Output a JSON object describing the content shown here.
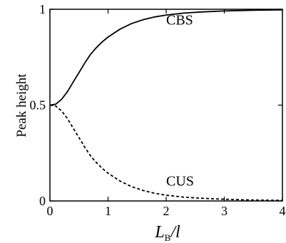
{
  "chart_data": {
    "type": "line",
    "title": "",
    "ylabel": "Peak height",
    "xlabel": {
      "main": "L",
      "sub": "B",
      "tail": "/l"
    },
    "xlim": [
      0,
      4
    ],
    "ylim": [
      0,
      1
    ],
    "x_ticks": [
      "0",
      "1",
      "2",
      "3",
      "4"
    ],
    "y_ticks": [
      {
        "value": 0,
        "label": "0"
      },
      {
        "value": 0.5,
        "label": "0.5"
      },
      {
        "value": 1,
        "label": "1"
      }
    ],
    "grid": false,
    "legend": "none",
    "series": [
      {
        "name": "CBS",
        "style": "solid",
        "color": "#000000",
        "label_at": [
          2.0,
          0.92
        ],
        "points": [
          [
            0.0,
            0.5
          ],
          [
            0.1,
            0.505
          ],
          [
            0.2,
            0.53
          ],
          [
            0.3,
            0.57
          ],
          [
            0.4,
            0.62
          ],
          [
            0.5,
            0.67
          ],
          [
            0.6,
            0.72
          ],
          [
            0.7,
            0.765
          ],
          [
            0.8,
            0.8
          ],
          [
            0.9,
            0.83
          ],
          [
            1.0,
            0.855
          ],
          [
            1.2,
            0.895
          ],
          [
            1.4,
            0.925
          ],
          [
            1.6,
            0.945
          ],
          [
            1.8,
            0.96
          ],
          [
            2.0,
            0.97
          ],
          [
            2.3,
            0.98
          ],
          [
            2.6,
            0.986
          ],
          [
            3.0,
            0.991
          ],
          [
            3.5,
            0.995
          ],
          [
            4.0,
            0.997
          ]
        ]
      },
      {
        "name": "CUS",
        "style": "dashed",
        "color": "#000000",
        "label_at": [
          2.0,
          0.08
        ],
        "points": [
          [
            0.0,
            0.5
          ],
          [
            0.1,
            0.495
          ],
          [
            0.2,
            0.47
          ],
          [
            0.3,
            0.43
          ],
          [
            0.4,
            0.38
          ],
          [
            0.5,
            0.33
          ],
          [
            0.6,
            0.28
          ],
          [
            0.7,
            0.235
          ],
          [
            0.8,
            0.2
          ],
          [
            0.9,
            0.17
          ],
          [
            1.0,
            0.145
          ],
          [
            1.2,
            0.105
          ],
          [
            1.4,
            0.075
          ],
          [
            1.6,
            0.055
          ],
          [
            1.8,
            0.04
          ],
          [
            2.0,
            0.03
          ],
          [
            2.3,
            0.02
          ],
          [
            2.6,
            0.014
          ],
          [
            3.0,
            0.009
          ],
          [
            3.5,
            0.005
          ],
          [
            4.0,
            0.003
          ]
        ]
      }
    ]
  }
}
